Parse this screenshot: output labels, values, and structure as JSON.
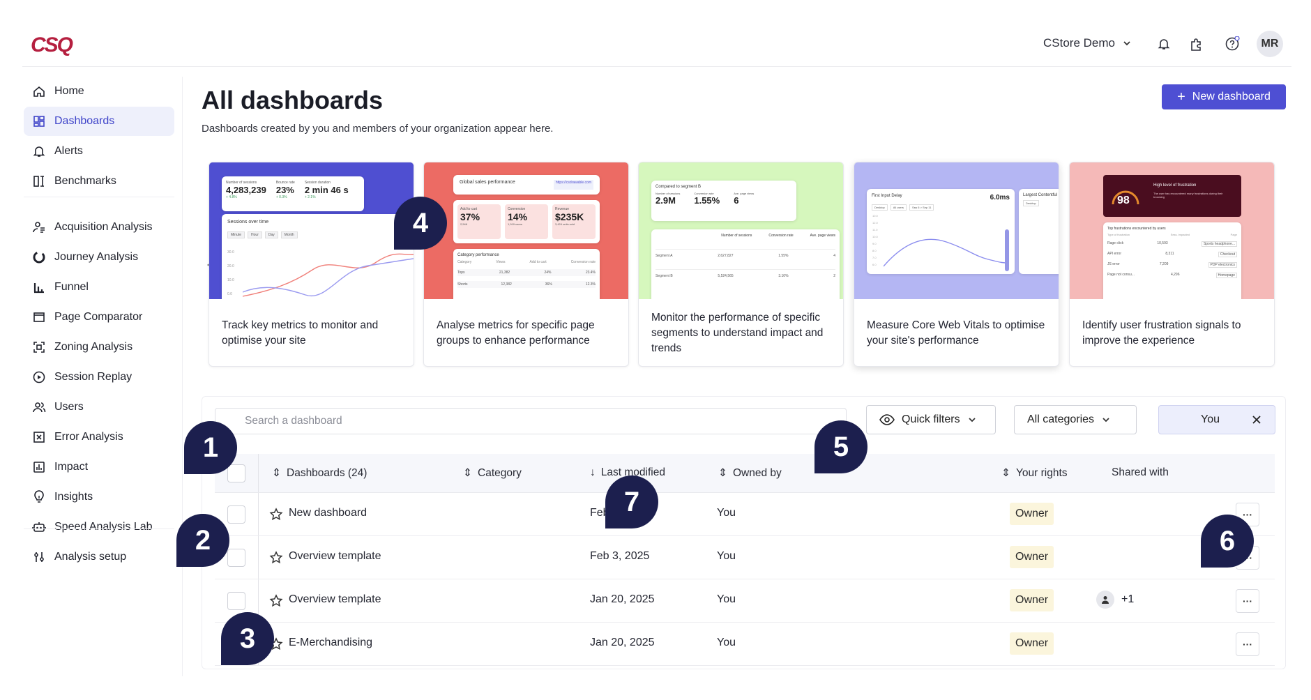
{
  "header": {
    "logo": "CSQ",
    "workspace": "CStore Demo",
    "avatar_initials": "MR",
    "icons": [
      "bell-icon",
      "puzzle-icon",
      "help-icon"
    ]
  },
  "sidebar": {
    "items": [
      {
        "label": "Home",
        "icon": "home-icon"
      },
      {
        "label": "Dashboards",
        "icon": "dashboard-icon",
        "active": true
      },
      {
        "label": "Alerts",
        "icon": "bell-icon"
      },
      {
        "label": "Benchmarks",
        "icon": "benchmark-icon"
      },
      {
        "label": "Acquisition Analysis",
        "icon": "acquisition-icon"
      },
      {
        "label": "Journey Analysis",
        "icon": "journey-icon"
      },
      {
        "label": "Funnel",
        "icon": "funnel-icon"
      },
      {
        "label": "Page Comparator",
        "icon": "page-comparator-icon"
      },
      {
        "label": "Zoning Analysis",
        "icon": "zoning-icon"
      },
      {
        "label": "Session Replay",
        "icon": "play-icon"
      },
      {
        "label": "Users",
        "icon": "users-icon"
      },
      {
        "label": "Error Analysis",
        "icon": "error-icon"
      },
      {
        "label": "Impact",
        "icon": "impact-icon"
      },
      {
        "label": "Insights",
        "icon": "lightbulb-icon"
      },
      {
        "label": "Speed Analysis Lab",
        "icon": "robot-icon"
      },
      {
        "label": "Analysis setup",
        "icon": "sliders-icon"
      }
    ]
  },
  "main": {
    "title": "All dashboards",
    "subtitle": "Dashboards created by you and members of your organization appear here.",
    "new_button": "New dashboard"
  },
  "templates": [
    {
      "desc": "Track key metrics to monitor and optimise your site",
      "color": "#4f4fd1",
      "m1": "4,283,239",
      "m2": "23%",
      "m3": "2 min 46 s",
      "caption": "Sessions over time",
      "l1": "Number of sessions",
      "l2": "Bounce rate",
      "l3": "Session duration",
      "d1": "+ 4.8%",
      "d2": "+ 0.3%",
      "d3": "+ 2.1%",
      "btns": [
        "Minute",
        "Hour",
        "Day",
        "Month"
      ],
      "yt": [
        "30.0",
        "20.0",
        "10.0",
        "0.0"
      ]
    },
    {
      "desc": "Analyse metrics for specific page groups to enhance performance",
      "color": "#ec6b64",
      "m1": "37%",
      "m2": "14%",
      "m3": "$235K",
      "caption": "Global sales performance",
      "caption2": "Category performance",
      "link": "https://csdrawable.com",
      "l1": "Add to cart",
      "l2": "Conversion",
      "l3": "Revenue",
      "s1": "2,546",
      "s2": "1,919 users",
      "s3": "3,424 units sold",
      "th": [
        "Category",
        "Views",
        "Add to cart",
        "Conversion rate"
      ],
      "r1": [
        "Tops",
        "21,382",
        "24%",
        "23.4%"
      ],
      "r2": [
        "Shorts",
        "12,382",
        "36%",
        "12.3%"
      ]
    },
    {
      "desc": "Monitor the performance of specific segments to understand impact and trends",
      "color": "#d6f7bd",
      "m1": "2.9M",
      "m2": "1.55%",
      "m3": "6",
      "caption": "Compared to segment B",
      "l1": "Number of sessions",
      "l2": "Conversion rate",
      "l3": "Ave. page views",
      "th": [
        "Number of sessions",
        "Conversion rate",
        "Ave. page views"
      ],
      "r1": [
        "Segment A",
        "2,627,827",
        "1.55%",
        "4"
      ],
      "r2": [
        "Segment B",
        "5,524,565",
        "3.10%",
        "2"
      ]
    },
    {
      "desc": "Measure Core Web Vitals to optimise your site's performance",
      "color": "#b4b6f3",
      "caption": "First Input Delay",
      "caption2": "Largest Contentful",
      "m1": "6.0ms",
      "dev": "Desktop",
      "users": "All users",
      "range": "Sep 6 > Sep 11",
      "yt": [
        "10.0",
        "12.0",
        "11.0",
        "10.0",
        "9.0",
        "8.0",
        "7.0",
        "6.0"
      ]
    },
    {
      "desc": "Identify user frustration signals to improve the experience",
      "color": "#f5b9b8",
      "m1": "98",
      "caption": "High level of frustration",
      "caption2": "Top frustrations encountered by users",
      "note": "The user has encountered many frustrations during their browsing",
      "th": [
        "Type of frustration",
        "Sess. impacted",
        "Page"
      ],
      "r1": [
        "Rage click",
        "10,593",
        "Sports headphone..."
      ],
      "r2": [
        "API error",
        "8,311",
        "Checkout"
      ],
      "r3": [
        "JS error",
        "7,209",
        "PDP electronics"
      ],
      "r4": [
        "Page not consu...",
        "4,296",
        "Homepage"
      ]
    }
  ],
  "filters": {
    "search_placeholder": "Search a dashboard",
    "quick_filters": "Quick filters",
    "categories": "All categories",
    "owner_chip": "You"
  },
  "table": {
    "headers": [
      "Dashboards (24)",
      "Category",
      "Last modified",
      "Owned by",
      "Your rights",
      "Shared with"
    ],
    "rows": [
      {
        "name": "New dashboard",
        "modified": "Feb 4, 2025",
        "owner": "You",
        "rights": "Owner",
        "shared": ""
      },
      {
        "name": "Overview template",
        "modified": "Feb 3, 2025",
        "owner": "You",
        "rights": "Owner",
        "shared": ""
      },
      {
        "name": "Overview template",
        "modified": "Jan 20, 2025",
        "owner": "You",
        "rights": "Owner",
        "shared": "+1"
      },
      {
        "name": "E-Merchandising",
        "modified": "Jan 20, 2025",
        "owner": "You",
        "rights": "Owner",
        "shared": ""
      }
    ],
    "more_label": "···"
  },
  "markers": [
    "1",
    "2",
    "3",
    "4",
    "5",
    "6",
    "7"
  ]
}
